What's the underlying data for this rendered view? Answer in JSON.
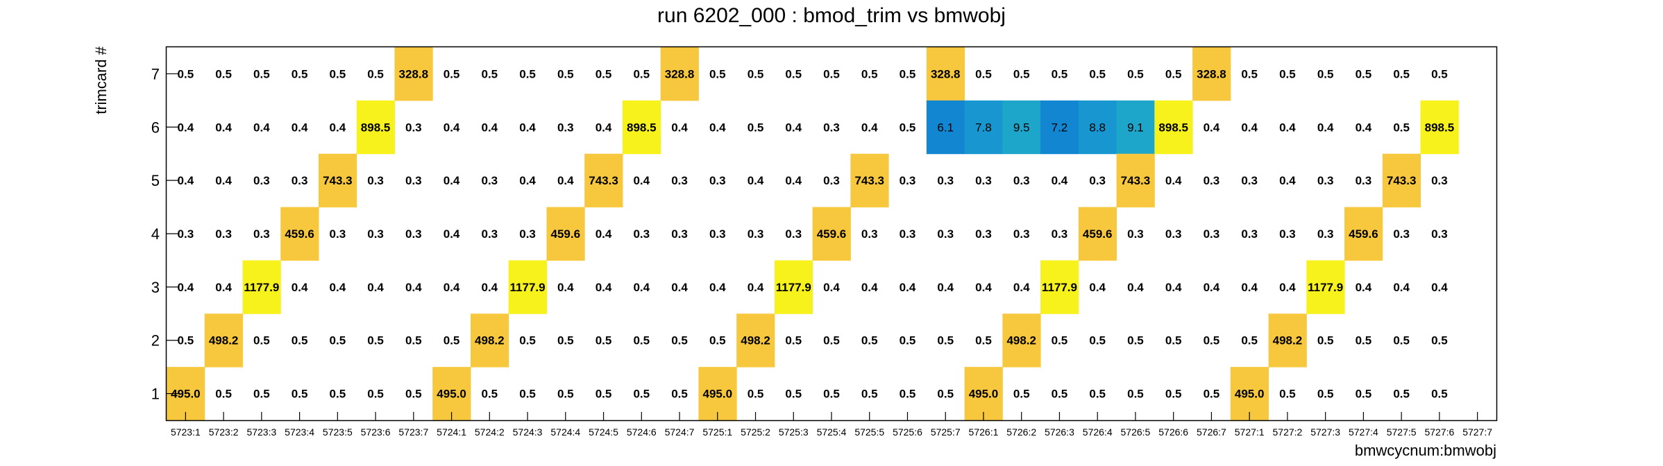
{
  "chart_data": {
    "type": "heatmap",
    "title": "run 6202_000 : bmod_trim vs bmwobj",
    "xlabel": "bmwcycnum:bmwobj",
    "ylabel": "trimcard #",
    "x_categories": [
      "5723:1",
      "5723:2",
      "5723:3",
      "5723:4",
      "5723:5",
      "5723:6",
      "5723:7",
      "5724:1",
      "5724:2",
      "5724:3",
      "5724:4",
      "5724:5",
      "5724:6",
      "5724:7",
      "5725:1",
      "5725:2",
      "5725:3",
      "5725:4",
      "5725:5",
      "5725:6",
      "5725:7",
      "5726:1",
      "5726:2",
      "5726:3",
      "5726:4",
      "5726:5",
      "5726:6",
      "5726:7",
      "5727:1",
      "5727:2",
      "5727:3",
      "5727:4",
      "5727:5",
      "5727:6",
      "5727:7"
    ],
    "y_categories": [
      "1",
      "2",
      "3",
      "4",
      "5",
      "6",
      "7"
    ],
    "rows": [
      {
        "y": "7",
        "values": [
          "0.5",
          "0.5",
          "0.5",
          "0.5",
          "0.5",
          "0.5",
          "328.8",
          "0.5",
          "0.5",
          "0.5",
          "0.5",
          "0.5",
          "0.5",
          "328.8",
          "0.5",
          "0.5",
          "0.5",
          "0.5",
          "0.5",
          "0.5",
          "328.8",
          "0.5",
          "0.5",
          "0.5",
          "0.5",
          "0.5",
          "0.5",
          "328.8",
          "0.5",
          "0.5",
          "0.5",
          "0.5",
          "0.5",
          "0.5",
          ""
        ]
      },
      {
        "y": "6",
        "values": [
          "0.4",
          "0.4",
          "0.4",
          "0.4",
          "0.4",
          "898.5",
          "0.3",
          "0.4",
          "0.4",
          "0.4",
          "0.3",
          "0.4",
          "898.5",
          "0.4",
          "0.4",
          "0.5",
          "0.4",
          "0.3",
          "0.4",
          "0.5",
          "6.1",
          "7.8",
          "9.5",
          "7.2",
          "8.8",
          "9.1",
          "898.5",
          "0.4",
          "0.4",
          "0.4",
          "0.4",
          "0.4",
          "0.5",
          "898.5",
          ""
        ]
      },
      {
        "y": "5",
        "values": [
          "0.4",
          "0.4",
          "0.3",
          "0.3",
          "743.3",
          "0.3",
          "0.3",
          "0.4",
          "0.3",
          "0.4",
          "0.4",
          "743.3",
          "0.4",
          "0.3",
          "0.3",
          "0.4",
          "0.4",
          "0.3",
          "743.3",
          "0.3",
          "0.3",
          "0.3",
          "0.3",
          "0.4",
          "0.3",
          "743.3",
          "0.4",
          "0.3",
          "0.3",
          "0.4",
          "0.3",
          "0.3",
          "743.3",
          "0.3",
          ""
        ]
      },
      {
        "y": "4",
        "values": [
          "0.3",
          "0.3",
          "0.3",
          "459.6",
          "0.3",
          "0.3",
          "0.3",
          "0.4",
          "0.3",
          "0.3",
          "459.6",
          "0.4",
          "0.3",
          "0.3",
          "0.3",
          "0.3",
          "0.3",
          "459.6",
          "0.3",
          "0.3",
          "0.3",
          "0.3",
          "0.3",
          "0.3",
          "459.6",
          "0.3",
          "0.3",
          "0.3",
          "0.3",
          "0.3",
          "0.3",
          "459.6",
          "0.3",
          "0.3",
          ""
        ]
      },
      {
        "y": "3",
        "values": [
          "0.4",
          "0.4",
          "1177.9",
          "0.4",
          "0.4",
          "0.4",
          "0.4",
          "0.4",
          "0.4",
          "1177.9",
          "0.4",
          "0.4",
          "0.4",
          "0.4",
          "0.4",
          "0.4",
          "1177.9",
          "0.4",
          "0.4",
          "0.4",
          "0.4",
          "0.4",
          "0.4",
          "1177.9",
          "0.4",
          "0.4",
          "0.4",
          "0.4",
          "0.4",
          "0.4",
          "1177.9",
          "0.4",
          "0.4",
          "0.4",
          ""
        ]
      },
      {
        "y": "2",
        "values": [
          "0.5",
          "498.2",
          "0.5",
          "0.5",
          "0.5",
          "0.5",
          "0.5",
          "0.5",
          "498.2",
          "0.5",
          "0.5",
          "0.5",
          "0.5",
          "0.5",
          "0.5",
          "498.2",
          "0.5",
          "0.5",
          "0.5",
          "0.5",
          "0.5",
          "0.5",
          "498.2",
          "0.5",
          "0.5",
          "0.5",
          "0.5",
          "0.5",
          "0.5",
          "498.2",
          "0.5",
          "0.5",
          "0.5",
          "0.5",
          ""
        ]
      },
      {
        "y": "1",
        "values": [
          "495.0",
          "0.5",
          "0.5",
          "0.5",
          "0.5",
          "0.5",
          "0.5",
          "495.0",
          "0.5",
          "0.5",
          "0.5",
          "0.5",
          "0.5",
          "0.5",
          "495.0",
          "0.5",
          "0.5",
          "0.5",
          "0.5",
          "0.5",
          "0.5",
          "495.0",
          "0.5",
          "0.5",
          "0.5",
          "0.5",
          "0.5",
          "0.5",
          "495.0",
          "0.5",
          "0.5",
          "0.5",
          "0.5",
          "0.5",
          ""
        ]
      }
    ],
    "colors": {
      "orange": "#f7c83e",
      "yellow": "#f7f21c",
      "blue_dark": "#1286d0",
      "blue_mid": "#1896cf",
      "blue_light": "#1ea6ca"
    }
  }
}
